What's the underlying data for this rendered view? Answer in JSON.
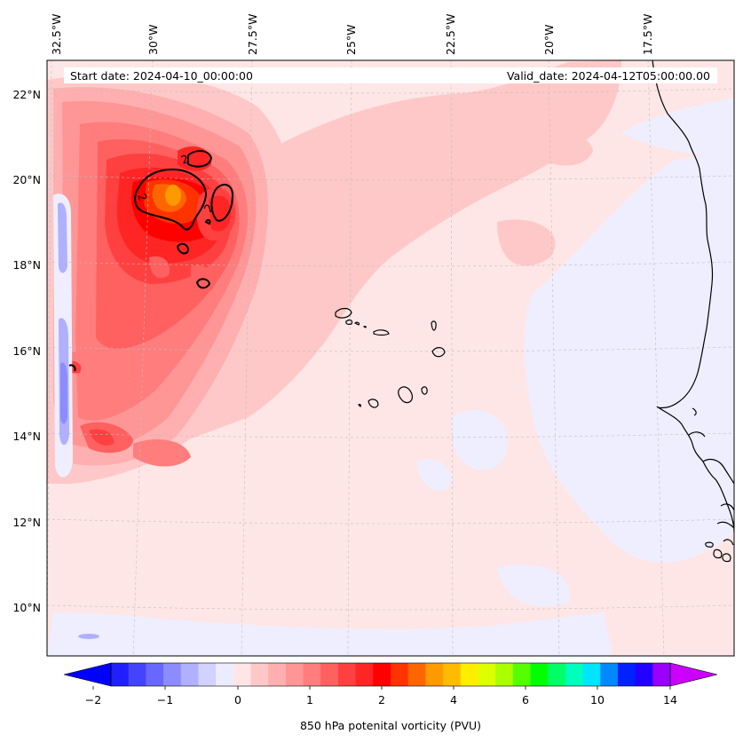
{
  "header": {
    "start_date": "Start date: 2024-04-10_00:00:00",
    "valid_date": "Valid_date: 2024-04-12T05:00:00.00"
  },
  "map": {
    "background_color": "#ffe6e6",
    "lon_labels": [
      "32.5°W",
      "30°W",
      "27.5°W",
      "25°W",
      "22.5°W",
      "20°W",
      "17.5°W"
    ],
    "lat_labels": [
      "22°N",
      "20°N",
      "18°N",
      "16°N",
      "14°N",
      "12°N",
      "10°N"
    ],
    "contour_labels": [
      "2",
      "2",
      "2"
    ]
  },
  "colorbar": {
    "title": "850 hPa potenital vorticity (PVU)",
    "tick_labels": [
      "−2",
      "−1",
      "0",
      "1",
      "2",
      "4",
      "6",
      "10",
      "14"
    ],
    "colors": [
      "#0000ff",
      "#2020ff",
      "#4444ff",
      "#6868ff",
      "#8c8cff",
      "#b0b0ff",
      "#d2d2ff",
      "#ececff",
      "#ffe6e6",
      "#ffc8c8",
      "#ffafaf",
      "#ff9696",
      "#ff7d7d",
      "#ff6060",
      "#ff4040",
      "#ff2525",
      "#ff0000",
      "#ff3300",
      "#ff6600",
      "#ff9900",
      "#ffbb00",
      "#ffee00",
      "#ddff00",
      "#aaff00",
      "#55ff00",
      "#00ff00",
      "#00ff66",
      "#00ffbb",
      "#00e5ff",
      "#0088ff",
      "#0022ff",
      "#2200ff",
      "#9900ff",
      "#cc00ff"
    ]
  }
}
